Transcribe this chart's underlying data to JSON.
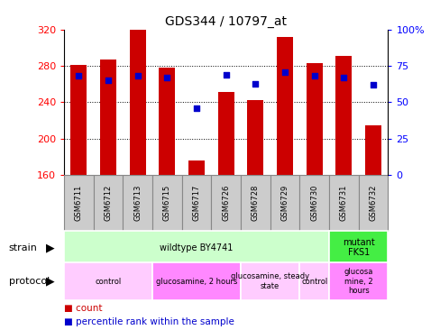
{
  "title": "GDS344 / 10797_at",
  "samples": [
    "GSM6711",
    "GSM6712",
    "GSM6713",
    "GSM6715",
    "GSM6717",
    "GSM6726",
    "GSM6728",
    "GSM6729",
    "GSM6730",
    "GSM6731",
    "GSM6732"
  ],
  "counts": [
    281,
    287,
    320,
    278,
    176,
    251,
    242,
    312,
    283,
    291,
    215
  ],
  "percentiles": [
    68,
    65,
    68,
    67,
    46,
    69,
    63,
    71,
    68,
    67,
    62
  ],
  "ymin": 160,
  "ymax": 320,
  "bar_color": "#cc0000",
  "dot_color": "#0000cc",
  "gridlines": [
    200,
    240,
    280
  ],
  "left_yticks": [
    160,
    200,
    240,
    280,
    320
  ],
  "right_ytick_vals": [
    0,
    25,
    50,
    75,
    100
  ],
  "right_ytick_labels": [
    "0",
    "25",
    "50",
    "75",
    "100%"
  ],
  "strain_groups": [
    {
      "label": "wildtype BY4741",
      "start": 0,
      "end": 9,
      "color": "#ccffcc"
    },
    {
      "label": "mutant\nFKS1",
      "start": 9,
      "end": 11,
      "color": "#44ee44"
    }
  ],
  "protocol_groups": [
    {
      "label": "control",
      "start": 0,
      "end": 3,
      "color": "#ffccff"
    },
    {
      "label": "glucosamine, 2 hours",
      "start": 3,
      "end": 6,
      "color": "#ff88ff"
    },
    {
      "label": "glucosamine, steady\nstate",
      "start": 6,
      "end": 8,
      "color": "#ffccff"
    },
    {
      "label": "control",
      "start": 8,
      "end": 9,
      "color": "#ffccff"
    },
    {
      "label": "glucosa\nmine, 2\nhours",
      "start": 9,
      "end": 11,
      "color": "#ff88ff"
    }
  ],
  "legend_items": [
    {
      "color": "#cc0000",
      "label": "count"
    },
    {
      "color": "#0000cc",
      "label": "percentile rank within the sample"
    }
  ],
  "sample_box_color": "#cccccc",
  "sample_box_edge": "#888888"
}
